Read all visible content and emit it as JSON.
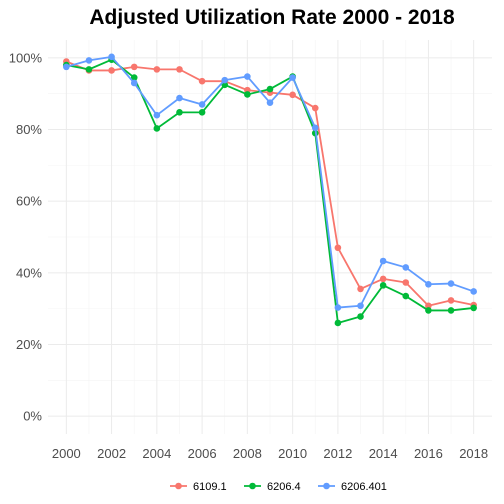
{
  "chart_data": {
    "type": "line",
    "title": "Adjusted Utilization Rate 2000 - 2018",
    "xlabel": "",
    "ylabel": "",
    "x": [
      2000,
      2001,
      2002,
      2003,
      2004,
      2005,
      2006,
      2007,
      2008,
      2009,
      2010,
      2011,
      2012,
      2013,
      2014,
      2015,
      2016,
      2017,
      2018
    ],
    "xlim": [
      2000,
      2018
    ],
    "ylim": [
      0,
      100
    ],
    "x_ticks": [
      2000,
      2002,
      2004,
      2006,
      2008,
      2010,
      2012,
      2014,
      2016,
      2018
    ],
    "y_ticks": [
      0,
      20,
      40,
      60,
      80,
      100
    ],
    "y_tick_labels": [
      "0%",
      "20%",
      "40%",
      "60%",
      "80%",
      "100%"
    ],
    "grid": true,
    "legend_position": "bottom",
    "series": [
      {
        "name": "6109.1",
        "color": "#F8766D",
        "values": [
          99.0,
          96.5,
          96.5,
          97.5,
          96.8,
          96.8,
          93.5,
          93.5,
          91.0,
          90.3,
          89.7,
          86.0,
          47.0,
          35.5,
          38.3,
          37.3,
          30.8,
          32.3,
          31.0
        ]
      },
      {
        "name": "6206.4",
        "color": "#00BA38",
        "values": [
          98.0,
          96.8,
          99.5,
          94.5,
          80.3,
          84.8,
          84.8,
          92.5,
          89.8,
          91.3,
          94.8,
          79.0,
          26.0,
          27.8,
          36.5,
          33.5,
          29.5,
          29.5,
          30.2
        ]
      },
      {
        "name": "6206.401",
        "color": "#619CFF",
        "values": [
          97.5,
          99.3,
          100.3,
          93.0,
          84.0,
          88.8,
          87.0,
          93.8,
          94.8,
          87.5,
          94.5,
          80.5,
          30.3,
          30.8,
          43.3,
          41.5,
          36.8,
          37.0,
          34.8
        ]
      }
    ]
  }
}
